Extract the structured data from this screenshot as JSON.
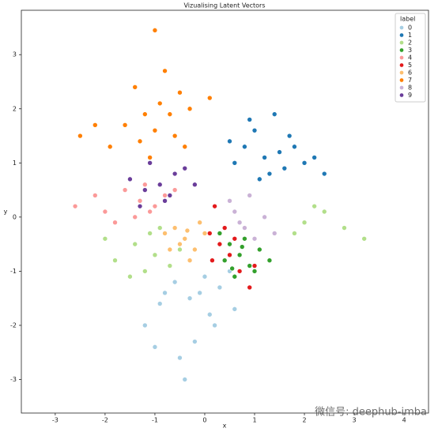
{
  "chart_data": {
    "type": "scatter",
    "title": "Vizualising Latent Vectors",
    "x_label": "x",
    "y_label": "y",
    "legend_title": "label",
    "legend_position": "upper right",
    "annotation": "微信号: deephub-imba",
    "xlim": [
      -3.68,
      4.49
    ],
    "ylim": [
      -3.62,
      3.82
    ],
    "xticks": [
      -3,
      -2,
      -1,
      0,
      1,
      2,
      3,
      4
    ],
    "yticks": [
      -3,
      -2,
      -1,
      0,
      1,
      2,
      3
    ],
    "series": [
      {
        "name": "0",
        "color": "#a6cee3",
        "x": [
          -0.3,
          -0.6,
          0.1,
          -0.9,
          0.3,
          -0.2,
          -1.2,
          0.5,
          -0.5,
          0.0,
          -0.8,
          0.2,
          -0.4,
          -1.0,
          0.6,
          -0.1
        ],
        "y": [
          -1.5,
          -1.2,
          -1.8,
          -1.6,
          -1.3,
          -2.3,
          -2.0,
          -1.0,
          -2.6,
          -1.1,
          -1.4,
          -2.0,
          -3.0,
          -2.4,
          -1.7,
          -1.4
        ]
      },
      {
        "name": "1",
        "color": "#1f78b4",
        "x": [
          1.2,
          0.8,
          1.6,
          2.0,
          1.0,
          1.4,
          0.6,
          2.4,
          1.8,
          1.1,
          0.5,
          1.5,
          2.2,
          0.9,
          1.3,
          1.7
        ],
        "y": [
          1.1,
          1.3,
          0.9,
          1.0,
          1.6,
          1.9,
          1.0,
          0.8,
          1.3,
          0.7,
          1.4,
          1.2,
          1.1,
          1.8,
          0.8,
          1.5
        ]
      },
      {
        "name": "2",
        "color": "#b2df8a",
        "x": [
          -1.0,
          -1.4,
          -0.7,
          -1.8,
          -1.1,
          -0.5,
          -1.5,
          -2.0,
          -0.9,
          2.0,
          2.4,
          1.8,
          2.8,
          3.2,
          -1.2,
          2.2
        ],
        "y": [
          -0.7,
          -0.5,
          -0.9,
          -0.8,
          -0.3,
          -0.6,
          -1.1,
          -0.4,
          -0.2,
          -0.1,
          0.1,
          -0.3,
          -0.2,
          -0.4,
          -1.0,
          0.2
        ]
      },
      {
        "name": "3",
        "color": "#33a02c",
        "x": [
          0.7,
          0.5,
          0.9,
          0.4,
          1.1,
          0.6,
          0.8,
          1.3,
          0.3,
          1.0,
          0.55,
          0.75
        ],
        "y": [
          -0.7,
          -0.5,
          -0.9,
          -0.8,
          -0.6,
          -1.1,
          -0.4,
          -0.8,
          -0.3,
          -1.0,
          -0.95,
          -0.55
        ]
      },
      {
        "name": "4",
        "color": "#fb9a99",
        "x": [
          -1.3,
          -1.6,
          -1.0,
          -2.0,
          -1.2,
          -0.8,
          -1.8,
          -2.6,
          -1.4,
          -0.6,
          -2.2,
          -1.1
        ],
        "y": [
          0.3,
          0.5,
          0.2,
          0.1,
          0.6,
          0.4,
          -0.1,
          0.2,
          0.0,
          0.5,
          0.4,
          0.1
        ]
      },
      {
        "name": "5",
        "color": "#e31a1c",
        "x": [
          0.3,
          0.1,
          0.5,
          0.2,
          0.7,
          0.4,
          0.9,
          0.15,
          0.6,
          1.0
        ],
        "y": [
          -0.5,
          -0.3,
          -0.7,
          0.2,
          -1.0,
          -0.2,
          -1.3,
          -0.8,
          -0.4,
          -0.9
        ]
      },
      {
        "name": "6",
        "color": "#fdbf6f",
        "x": [
          -0.4,
          -0.6,
          -0.2,
          -0.8,
          -0.3,
          0.0,
          -0.5,
          -0.1,
          -0.7,
          -0.35
        ],
        "y": [
          -0.4,
          -0.2,
          -0.6,
          -0.3,
          -0.8,
          -0.3,
          -0.5,
          -0.1,
          -0.6,
          -0.25
        ]
      },
      {
        "name": "7",
        "color": "#ff7f00",
        "x": [
          -1.0,
          -0.7,
          -1.3,
          -0.5,
          -1.6,
          -0.9,
          -0.3,
          -1.9,
          -1.1,
          -0.6,
          -2.5,
          -1.4,
          -0.8,
          0.1,
          -2.2,
          -1.2,
          -0.4,
          -1.0
        ],
        "y": [
          1.6,
          1.9,
          1.4,
          2.3,
          1.7,
          2.1,
          2.0,
          1.3,
          1.1,
          1.5,
          1.5,
          2.4,
          2.7,
          2.2,
          1.7,
          1.9,
          1.3,
          3.45
        ]
      },
      {
        "name": "8",
        "color": "#cab2d6",
        "x": [
          0.8,
          0.6,
          1.0,
          0.5,
          1.2,
          0.9,
          0.7,
          1.4
        ],
        "y": [
          -0.2,
          0.1,
          -0.4,
          0.3,
          0.0,
          0.4,
          -0.1,
          -0.3
        ]
      },
      {
        "name": "9",
        "color": "#6a3d9a",
        "x": [
          -0.9,
          -1.2,
          -0.6,
          -1.5,
          -0.8,
          -0.4,
          -1.1,
          -0.7,
          -1.3,
          -0.2
        ],
        "y": [
          0.6,
          0.5,
          0.8,
          0.7,
          0.3,
          0.9,
          1.0,
          0.4,
          0.2,
          0.6
        ]
      }
    ]
  }
}
